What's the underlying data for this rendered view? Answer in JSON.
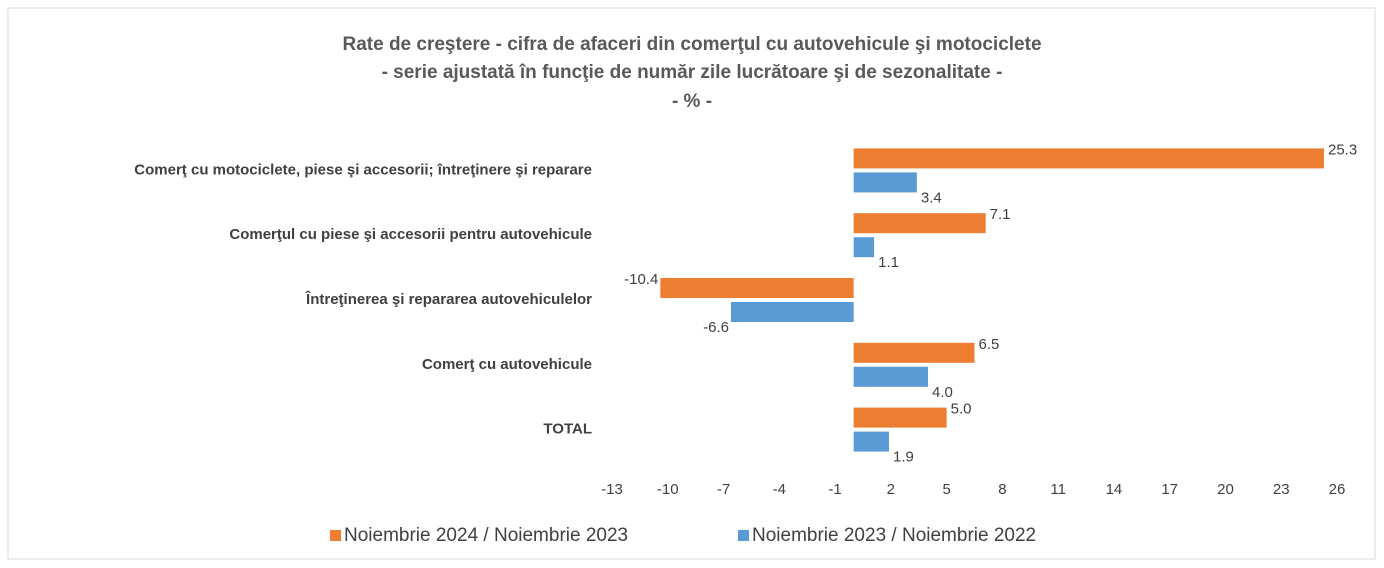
{
  "chart_data": {
    "type": "hbar",
    "title": "Rate de creştere - cifra de afaceri din comerţul cu autovehicule şi motociclete",
    "subtitle": [
      "- serie ajustată în funcţie de număr zile lucrătoare şi de sezonalitate -",
      "- % -"
    ],
    "categories": [
      "Comerţ cu motociclete, piese şi accesorii; întreţinere şi reparare",
      "Comerţul cu piese şi accesorii pentru autovehicule",
      "Întreţinerea şi repararea autovehiculelor",
      "Comerţ cu autovehicule",
      "TOTAL"
    ],
    "series": [
      {
        "name": "Noiembrie 2024 / Noiembrie 2023",
        "color": "#ed7d31",
        "values": [
          25.3,
          7.1,
          -10.4,
          6.5,
          5.0
        ],
        "value_labels": [
          "25.3",
          "7.1",
          "-10.4",
          "6.5",
          "5.0"
        ]
      },
      {
        "name": "Noiembrie 2023 / Noiembrie 2022",
        "color": "#5b9bd5",
        "values": [
          3.4,
          1.1,
          -6.6,
          4.0,
          1.9
        ],
        "value_labels": [
          "3.4",
          "1.1",
          "-6.6",
          "4.0",
          "1.9"
        ]
      }
    ],
    "xlim": [
      -13,
      26
    ],
    "xticks": [
      -13,
      -10,
      -7,
      -4,
      -1,
      2,
      5,
      8,
      11,
      14,
      17,
      20,
      23,
      26
    ],
    "grid": false,
    "legend": "bottom"
  }
}
